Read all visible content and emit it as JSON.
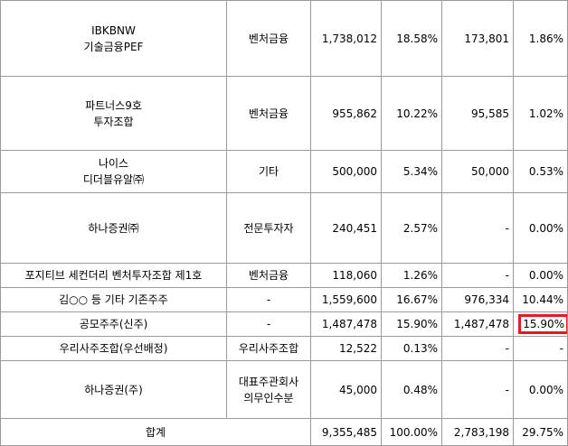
{
  "rows": [
    {
      "name": [
        "IBKBNW",
        "기술금융PEF"
      ],
      "category": [
        "벤처금융"
      ],
      "shares_before": "1,738,012",
      "ratio_before": "18.58%",
      "shares_after": "173,801",
      "ratio_after": "1.86%"
    },
    {
      "name": [
        "파트너스9호",
        "투자조합"
      ],
      "category": [
        "벤처금융"
      ],
      "shares_before": "955,862",
      "ratio_before": "10.22%",
      "shares_after": "95,585",
      "ratio_after": "1.02%"
    },
    {
      "name": [
        "나이스",
        "디더블유알㈜"
      ],
      "category": [
        "기타"
      ],
      "shares_before": "500,000",
      "ratio_before": "5.34%",
      "shares_after": "50,000",
      "ratio_after": "0.53%"
    },
    {
      "name": [
        "하나증권㈜"
      ],
      "category": [
        "전문투자자"
      ],
      "shares_before": "240,451",
      "ratio_before": "2.57%",
      "shares_after": "-",
      "ratio_after": "0.00%"
    },
    {
      "name": [
        "포지티브 세컨더리 벤처투자조합 제1호"
      ],
      "category": [
        "벤처금융"
      ],
      "shares_before": "118,060",
      "ratio_before": "1.26%",
      "shares_after": "-",
      "ratio_after": "0.00%"
    },
    {
      "name": [
        "김○○ 등 기타 기존주주"
      ],
      "category": [
        "-"
      ],
      "shares_before": "1,559,600",
      "ratio_before": "16.67%",
      "shares_after": "976,334",
      "ratio_after": "10.44%"
    },
    {
      "name": [
        "공모주주(신주)"
      ],
      "category": [
        "-"
      ],
      "shares_before": "1,487,478",
      "ratio_before": "15.90%",
      "shares_after": "1,487,478",
      "ratio_after": "15.90%",
      "highlighted": true
    },
    {
      "name": [
        "우리사주조합(우선배정)"
      ],
      "category": [
        "우리사주조합"
      ],
      "shares_before": "12,522",
      "ratio_before": "0.13%",
      "shares_after": "-",
      "ratio_after": "-"
    },
    {
      "name": [
        "하나증권(주)"
      ],
      "category": [
        "대표주관회사",
        "의무인수분"
      ],
      "shares_before": "45,000",
      "ratio_before": "0.48%",
      "shares_after": "-",
      "ratio_after": "0.00%"
    }
  ],
  "total": {
    "label": "합계",
    "shares_before": "9,355,485",
    "ratio_before": "100.00%",
    "shares_after": "2,783,198",
    "ratio_after": "29.75%"
  },
  "highlight_color": "#e31b23"
}
